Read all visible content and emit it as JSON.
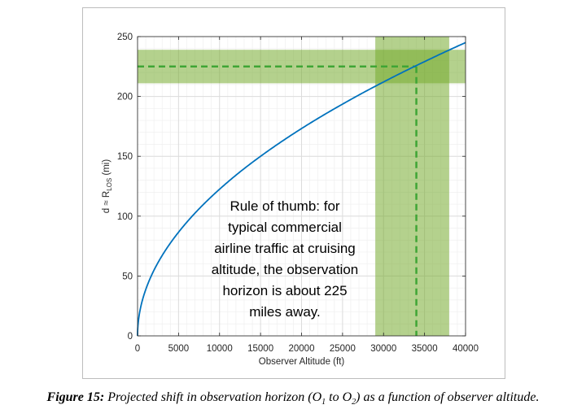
{
  "chart_data": {
    "type": "line",
    "xlabel": "Observer Altitude (ft)",
    "ylabel_main": "d ≈ R",
    "ylabel_sub": "LOS",
    "ylabel_unit": " (mi)",
    "xlim": [
      0,
      40000
    ],
    "ylim": [
      0,
      250
    ],
    "xticks": [
      0,
      5000,
      10000,
      15000,
      20000,
      25000,
      30000,
      35000,
      40000
    ],
    "yticks": [
      0,
      50,
      100,
      150,
      200,
      250
    ],
    "grid": true,
    "series": [
      {
        "color": "#0072bd",
        "x": [
          0,
          50,
          200,
          500,
          1000,
          2000,
          3000,
          5000,
          7500,
          10000,
          12500,
          15000,
          17500,
          20000,
          22500,
          25000,
          27500,
          30000,
          32500,
          35000,
          37500,
          40000
        ],
        "y": [
          0,
          8.7,
          17.3,
          27.4,
          38.7,
          54.8,
          67.1,
          86.6,
          106.1,
          122.5,
          137.0,
          150.0,
          162.0,
          173.2,
          183.7,
          193.6,
          203.1,
          212.1,
          220.8,
          229.1,
          237.2,
          245.0
        ]
      }
    ],
    "highlight_bands": [
      {
        "axis": "y",
        "from": 211,
        "to": 239,
        "color": "#77ac30"
      },
      {
        "axis": "x",
        "from": 29000,
        "to": 38000,
        "color": "#77ac30"
      }
    ],
    "reference_lines": [
      {
        "axis": "y",
        "value": 225,
        "style": "dashed",
        "color": "#3fa535"
      },
      {
        "axis": "x",
        "value": 34000,
        "style": "dashed",
        "color": "#3fa535"
      }
    ],
    "annotation_lines": [
      "Rule of thumb: for",
      "typical commercial",
      "airline traffic at cruising",
      "altitude, the observation",
      "horizon is about 225",
      "miles away."
    ]
  },
  "caption": {
    "label": "Figure 15:",
    "text_before_o1": " Projected shift in observation horizon (O",
    "o1_sub": "1",
    "text_between": " to O",
    "o2_sub": "2",
    "text_after": ") as a function of observer altitude."
  }
}
